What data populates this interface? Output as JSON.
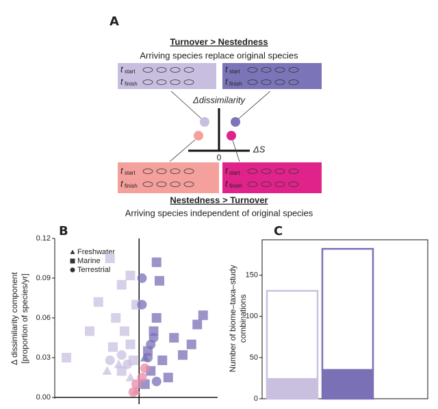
{
  "panel_a": {
    "label": "A",
    "top_title": "Turnover > Nestedness",
    "top_subtitle": "Arriving species replace original species",
    "bottom_title": "Nestedness > Turnover",
    "bottom_subtitle": "Arriving species independent of original species",
    "y_axis": "Δdissimilarity",
    "x_axis": "ΔS",
    "origin": "0",
    "t": "t",
    "start": "start",
    "finish": "finish"
  },
  "chart_data": [
    {
      "type": "scatter",
      "label": "B",
      "ylabel": [
        "Δ dissimilarity component",
        "[proportion of species/yr]"
      ],
      "xlim": [
        -2.9,
        2.7
      ],
      "ylim": [
        -0.001,
        0.12
      ],
      "yticks": [
        {
          "value": 0,
          "label": "0.00"
        },
        0.03,
        0.06,
        0.09,
        0.12
      ],
      "series": [
        {
          "name": "Freshwater",
          "shape": "triangle",
          "color": "#333333",
          "x": [
            -0.7,
            -1.1,
            -0.3,
            0.2,
            -0.1
          ],
          "values": [
            0.025,
            0.02,
            0.015,
            0.03,
            0.005
          ],
          "colors": [
            "#c9c0e0",
            "#c9c0e0",
            "#c9c0e0",
            "#7a70b5",
            "#e98aa8"
          ]
        },
        {
          "name": "Marine",
          "shape": "square",
          "color": "#333333",
          "x": [
            -2.5,
            -1.0,
            -0.6,
            -1.4,
            -0.8,
            -0.5,
            -0.3,
            -0.9,
            -0.2,
            -0.6,
            -0.1,
            0.6,
            0.7,
            2.2,
            2.0,
            1.8,
            1.5,
            1.2,
            0.5,
            0.3,
            0.8,
            0.4,
            1.0,
            0.2,
            0.6,
            -0.3,
            -1.7
          ],
          "values": [
            0.03,
            0.105,
            0.085,
            0.072,
            0.06,
            0.05,
            0.04,
            0.038,
            0.028,
            0.02,
            0.07,
            0.102,
            0.088,
            0.062,
            0.055,
            0.04,
            0.032,
            0.045,
            0.05,
            0.035,
            0.028,
            0.02,
            0.015,
            0.01,
            0.06,
            0.092,
            0.05
          ],
          "colors": [
            "#c9c0e0",
            "#c9c0e0",
            "#c9c0e0",
            "#c9c0e0",
            "#c9c0e0",
            "#c9c0e0",
            "#c9c0e0",
            "#c9c0e0",
            "#c9c0e0",
            "#c9c0e0",
            "#c9c0e0",
            "#7a70b5",
            "#7a70b5",
            "#7a70b5",
            "#7a70b5",
            "#7a70b5",
            "#7a70b5",
            "#7a70b5",
            "#7a70b5",
            "#7a70b5",
            "#7a70b5",
            "#7a70b5",
            "#7a70b5",
            "#7a70b5",
            "#7a70b5",
            "#c9c0e0",
            "#c9c0e0"
          ]
        },
        {
          "name": "Terrestrial",
          "shape": "circle",
          "color": "#333333",
          "x": [
            0.1,
            0.1,
            -1.0,
            -0.4,
            0.5,
            0.3,
            0.2,
            0.1,
            -0.1,
            -0.2,
            0.4,
            -0.6,
            0.6
          ],
          "values": [
            0.09,
            0.07,
            0.028,
            0.025,
            0.045,
            0.03,
            0.022,
            0.015,
            0.01,
            0.004,
            0.04,
            0.032,
            0.012
          ],
          "colors": [
            "#7a70b5",
            "#7a70b5",
            "#c9c0e0",
            "#c9c0e0",
            "#7a70b5",
            "#7a70b5",
            "#e98aa8",
            "#e98aa8",
            "#e98aa8",
            "#e98aa8",
            "#7a70b5",
            "#c9c0e0",
            "#7a70b5"
          ]
        }
      ]
    },
    {
      "type": "stacked_bar",
      "label": "C",
      "ylabel": [
        "Number of biome–taxa–study",
        "combinations"
      ],
      "ylim": [
        0,
        193
      ],
      "yticks": [
        0,
        50,
        100,
        150
      ],
      "series": [
        {
          "values": [
            24,
            35
          ],
          "colors": [
            "#c9c0e0",
            "#7a70b5"
          ]
        },
        {
          "values": [
            107,
            147
          ],
          "colors": [
            "#ffffff",
            "#ffffff"
          ],
          "stroke": [
            "#c9c0e0",
            "#7a70b5"
          ]
        }
      ]
    }
  ]
}
